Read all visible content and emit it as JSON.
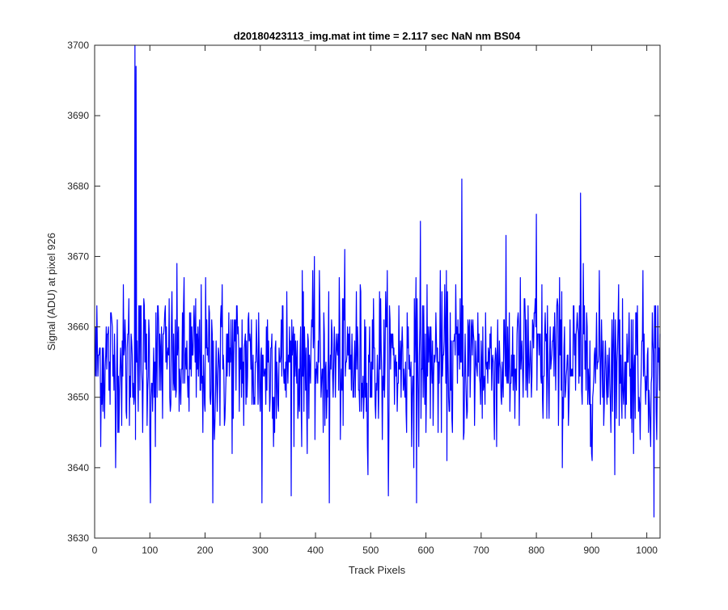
{
  "chart_data": {
    "type": "line",
    "title": "d20180423113_img.mat int time = 2.117 sec  NaN nm BS04",
    "xlabel": "Track Pixels",
    "ylabel": "Signal (ADU) at pixel 926",
    "xlim": [
      0,
      1024
    ],
    "ylim": [
      3630,
      3700
    ],
    "xticks": [
      0,
      100,
      200,
      300,
      400,
      500,
      600,
      700,
      800,
      900,
      1000
    ],
    "yticks": [
      3630,
      3640,
      3650,
      3660,
      3670,
      3680,
      3690,
      3700
    ],
    "grid": false,
    "legend": "none",
    "series": [
      {
        "color": "#0000ff",
        "baseline": 3655,
        "x_start": 1,
        "x_end": 1024,
        "approx_range": [
          3633,
          3700
        ],
        "notable_points": [
          {
            "x": 73,
            "y": 3700
          },
          {
            "x": 75,
            "y": 3697
          },
          {
            "x": 665,
            "y": 3681
          },
          {
            "x": 880,
            "y": 3679
          },
          {
            "x": 590,
            "y": 3675
          },
          {
            "x": 800,
            "y": 3676
          },
          {
            "x": 214,
            "y": 3635
          },
          {
            "x": 303,
            "y": 3635
          },
          {
            "x": 101,
            "y": 3635
          },
          {
            "x": 425,
            "y": 3635
          },
          {
            "x": 583,
            "y": 3635
          },
          {
            "x": 1013,
            "y": 3633
          }
        ]
      }
    ]
  }
}
